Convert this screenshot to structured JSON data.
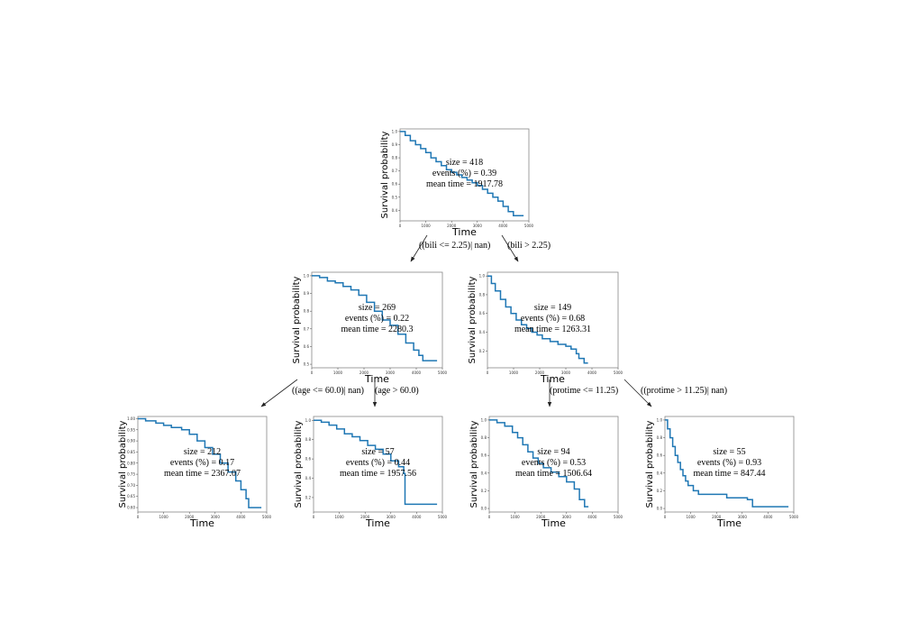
{
  "chart_data": {
    "type": "survival-tree",
    "nodes": [
      {
        "id": "root",
        "size_text": "size = 418",
        "events_text": "events (%) = 0.39",
        "mean_text": "mean time = 1917.78",
        "xlabel": "Time",
        "ylabel": "Survival probability",
        "xlim": [
          0,
          5000
        ],
        "ylim": [
          0.32,
          1.02
        ],
        "xticks": [
          "0",
          "1000",
          "2000",
          "3000",
          "4000",
          "5000"
        ],
        "yticks": [
          {
            "v": 0.4,
            "label": "0.4"
          },
          {
            "v": 0.5,
            "label": "0.5"
          },
          {
            "v": 0.6,
            "label": "0.6"
          },
          {
            "v": 0.7,
            "label": "0.7"
          },
          {
            "v": 0.8,
            "label": "0.8"
          },
          {
            "v": 0.9,
            "label": "0.9"
          },
          {
            "v": 1.0,
            "label": "1.0"
          }
        ],
        "curve": [
          [
            0,
            1.0
          ],
          [
            200,
            0.97
          ],
          [
            400,
            0.93
          ],
          [
            600,
            0.9
          ],
          [
            800,
            0.87
          ],
          [
            1000,
            0.84
          ],
          [
            1200,
            0.8
          ],
          [
            1400,
            0.77
          ],
          [
            1600,
            0.74
          ],
          [
            1800,
            0.71
          ],
          [
            2000,
            0.69
          ],
          [
            2200,
            0.67
          ],
          [
            2400,
            0.65
          ],
          [
            2600,
            0.63
          ],
          [
            2800,
            0.61
          ],
          [
            3000,
            0.59
          ],
          [
            3200,
            0.56
          ],
          [
            3400,
            0.53
          ],
          [
            3600,
            0.5
          ],
          [
            3800,
            0.47
          ],
          [
            4000,
            0.43
          ],
          [
            4200,
            0.39
          ],
          [
            4400,
            0.36
          ],
          [
            4795,
            0.36
          ]
        ]
      },
      {
        "id": "left",
        "size_text": "size = 269",
        "events_text": "events (%) = 0.22",
        "mean_text": "mean time = 2280.3",
        "xlabel": "Time",
        "ylabel": "Survival probability",
        "xlim": [
          0,
          5000
        ],
        "ylim": [
          0.48,
          1.02
        ],
        "xticks": [
          "0",
          "1000",
          "2000",
          "3000",
          "4000",
          "5000"
        ],
        "yticks": [
          {
            "v": 0.5,
            "label": "0.5"
          },
          {
            "v": 0.6,
            "label": "0.6"
          },
          {
            "v": 0.7,
            "label": "0.7"
          },
          {
            "v": 0.8,
            "label": "0.8"
          },
          {
            "v": 0.9,
            "label": "0.9"
          },
          {
            "v": 1.0,
            "label": "1.0"
          }
        ],
        "curve": [
          [
            0,
            1.0
          ],
          [
            300,
            0.99
          ],
          [
            600,
            0.97
          ],
          [
            900,
            0.96
          ],
          [
            1200,
            0.94
          ],
          [
            1500,
            0.92
          ],
          [
            1800,
            0.89
          ],
          [
            2100,
            0.85
          ],
          [
            2400,
            0.8
          ],
          [
            2700,
            0.75
          ],
          [
            3000,
            0.72
          ],
          [
            3300,
            0.67
          ],
          [
            3600,
            0.62
          ],
          [
            3900,
            0.58
          ],
          [
            4100,
            0.55
          ],
          [
            4250,
            0.52
          ],
          [
            4795,
            0.52
          ]
        ]
      },
      {
        "id": "right",
        "size_text": "size = 149",
        "events_text": "events (%) = 0.68",
        "mean_text": "mean time = 1263.31",
        "xlabel": "Time",
        "ylabel": "Survival probability",
        "xlim": [
          0,
          5000
        ],
        "ylim": [
          0.02,
          1.04
        ],
        "xticks": [
          "0",
          "1000",
          "2000",
          "3000",
          "4000",
          "5000"
        ],
        "yticks": [
          {
            "v": 0.2,
            "label": "0.2"
          },
          {
            "v": 0.4,
            "label": "0.4"
          },
          {
            "v": 0.6,
            "label": "0.6"
          },
          {
            "v": 0.8,
            "label": "0.8"
          },
          {
            "v": 1.0,
            "label": "1.0"
          }
        ],
        "curve": [
          [
            0,
            1.0
          ],
          [
            150,
            0.92
          ],
          [
            300,
            0.84
          ],
          [
            500,
            0.75
          ],
          [
            700,
            0.67
          ],
          [
            900,
            0.6
          ],
          [
            1100,
            0.53
          ],
          [
            1300,
            0.48
          ],
          [
            1500,
            0.44
          ],
          [
            1700,
            0.4
          ],
          [
            1900,
            0.37
          ],
          [
            2100,
            0.33
          ],
          [
            2400,
            0.3
          ],
          [
            2700,
            0.27
          ],
          [
            3000,
            0.25
          ],
          [
            3200,
            0.22
          ],
          [
            3400,
            0.17
          ],
          [
            3500,
            0.12
          ],
          [
            3700,
            0.07
          ],
          [
            3850,
            0.07
          ]
        ]
      },
      {
        "id": "ll",
        "size_text": "size = 212",
        "events_text": "events (%) = 0.17",
        "mean_text": "mean time = 2367.07",
        "xlabel": "Time",
        "ylabel": "Survival probability",
        "xlim": [
          0,
          5000
        ],
        "ylim": [
          0.58,
          1.01
        ],
        "xticks": [
          "0",
          "1000",
          "2000",
          "3000",
          "4000",
          "5000"
        ],
        "yticks": [
          {
            "v": 0.6,
            "label": "0.60"
          },
          {
            "v": 0.65,
            "label": "0.65"
          },
          {
            "v": 0.7,
            "label": "0.70"
          },
          {
            "v": 0.75,
            "label": "0.75"
          },
          {
            "v": 0.8,
            "label": "0.80"
          },
          {
            "v": 0.85,
            "label": "0.85"
          },
          {
            "v": 0.9,
            "label": "0.90"
          },
          {
            "v": 0.95,
            "label": "0.95"
          },
          {
            "v": 1.0,
            "label": "1.00"
          }
        ],
        "curve": [
          [
            0,
            1.0
          ],
          [
            300,
            0.99
          ],
          [
            700,
            0.98
          ],
          [
            1000,
            0.97
          ],
          [
            1300,
            0.96
          ],
          [
            1700,
            0.95
          ],
          [
            2000,
            0.93
          ],
          [
            2300,
            0.9
          ],
          [
            2600,
            0.87
          ],
          [
            2900,
            0.84
          ],
          [
            3200,
            0.8
          ],
          [
            3500,
            0.76
          ],
          [
            3800,
            0.72
          ],
          [
            4000,
            0.68
          ],
          [
            4200,
            0.64
          ],
          [
            4300,
            0.6
          ],
          [
            4795,
            0.6
          ]
        ]
      },
      {
        "id": "lr",
        "size_text": "size = 57",
        "events_text": "events (%) = 0.44",
        "mean_text": "mean time = 1957.56",
        "xlabel": "Time",
        "ylabel": "Survival probability",
        "xlim": [
          0,
          5000
        ],
        "ylim": [
          0.05,
          1.04
        ],
        "xticks": [
          "0",
          "1000",
          "2000",
          "3000",
          "4000",
          "5000"
        ],
        "yticks": [
          {
            "v": 0.2,
            "label": "0.2"
          },
          {
            "v": 0.4,
            "label": "0.4"
          },
          {
            "v": 0.6,
            "label": "0.6"
          },
          {
            "v": 0.8,
            "label": "0.8"
          },
          {
            "v": 1.0,
            "label": "1.0"
          }
        ],
        "curve": [
          [
            0,
            1.0
          ],
          [
            300,
            0.98
          ],
          [
            600,
            0.95
          ],
          [
            900,
            0.91
          ],
          [
            1200,
            0.86
          ],
          [
            1500,
            0.83
          ],
          [
            1800,
            0.79
          ],
          [
            2100,
            0.74
          ],
          [
            2400,
            0.7
          ],
          [
            2700,
            0.65
          ],
          [
            3000,
            0.58
          ],
          [
            3300,
            0.52
          ],
          [
            3500,
            0.45
          ],
          [
            3550,
            0.13
          ],
          [
            4795,
            0.13
          ]
        ]
      },
      {
        "id": "rl",
        "size_text": "size = 94",
        "events_text": "events (%) = 0.53",
        "mean_text": "mean time = 1506.64",
        "xlabel": "Time",
        "ylabel": "Survival probability",
        "xlim": [
          0,
          5000
        ],
        "ylim": [
          -0.04,
          1.04
        ],
        "xticks": [
          "0",
          "1000",
          "2000",
          "3000",
          "4000",
          "5000"
        ],
        "yticks": [
          {
            "v": 0.0,
            "label": "0.0"
          },
          {
            "v": 0.2,
            "label": "0.2"
          },
          {
            "v": 0.4,
            "label": "0.4"
          },
          {
            "v": 0.6,
            "label": "0.6"
          },
          {
            "v": 0.8,
            "label": "0.8"
          },
          {
            "v": 1.0,
            "label": "1.0"
          }
        ],
        "curve": [
          [
            0,
            1.0
          ],
          [
            300,
            0.97
          ],
          [
            600,
            0.93
          ],
          [
            900,
            0.86
          ],
          [
            1100,
            0.8
          ],
          [
            1300,
            0.72
          ],
          [
            1500,
            0.64
          ],
          [
            1700,
            0.57
          ],
          [
            1900,
            0.51
          ],
          [
            2100,
            0.46
          ],
          [
            2400,
            0.41
          ],
          [
            2700,
            0.36
          ],
          [
            3000,
            0.3
          ],
          [
            3300,
            0.22
          ],
          [
            3500,
            0.1
          ],
          [
            3700,
            0.02
          ],
          [
            3850,
            0.02
          ]
        ]
      },
      {
        "id": "rr",
        "size_text": "size = 55",
        "events_text": "events (%) = 0.93",
        "mean_text": "mean time = 847.44",
        "xlabel": "Time",
        "ylabel": "Survival probability",
        "xlim": [
          0,
          5000
        ],
        "ylim": [
          -0.04,
          1.04
        ],
        "xticks": [
          "0",
          "1000",
          "2000",
          "3000",
          "4000",
          "5000"
        ],
        "yticks": [
          {
            "v": 0.0,
            "label": "0.0"
          },
          {
            "v": 0.2,
            "label": "0.2"
          },
          {
            "v": 0.4,
            "label": "0.4"
          },
          {
            "v": 0.6,
            "label": "0.6"
          },
          {
            "v": 0.8,
            "label": "0.8"
          },
          {
            "v": 1.0,
            "label": "1.0"
          }
        ],
        "curve": [
          [
            0,
            1.0
          ],
          [
            100,
            0.9
          ],
          [
            200,
            0.8
          ],
          [
            300,
            0.7
          ],
          [
            400,
            0.6
          ],
          [
            500,
            0.52
          ],
          [
            600,
            0.44
          ],
          [
            700,
            0.37
          ],
          [
            800,
            0.31
          ],
          [
            900,
            0.26
          ],
          [
            1100,
            0.2
          ],
          [
            1300,
            0.16
          ],
          [
            2200,
            0.16
          ],
          [
            2400,
            0.12
          ],
          [
            3200,
            0.1
          ],
          [
            3400,
            0.02
          ],
          [
            4795,
            0.02
          ]
        ]
      }
    ],
    "edges": [
      {
        "from": "root",
        "to": "left",
        "label": "((bili <= 2.25)| nan)"
      },
      {
        "from": "root",
        "to": "right",
        "label": "(bili > 2.25)"
      },
      {
        "from": "left",
        "to": "ll",
        "label": "((age <= 60.0)| nan)"
      },
      {
        "from": "left",
        "to": "lr",
        "label": "(age > 60.0)"
      },
      {
        "from": "right",
        "to": "rl",
        "label": "(protime <= 11.25)"
      },
      {
        "from": "right",
        "to": "rr",
        "label": "((protime > 11.25)| nan)"
      }
    ],
    "colors": {
      "curve": "#1f77b4",
      "frame": "#888888",
      "text": "#000000"
    }
  }
}
